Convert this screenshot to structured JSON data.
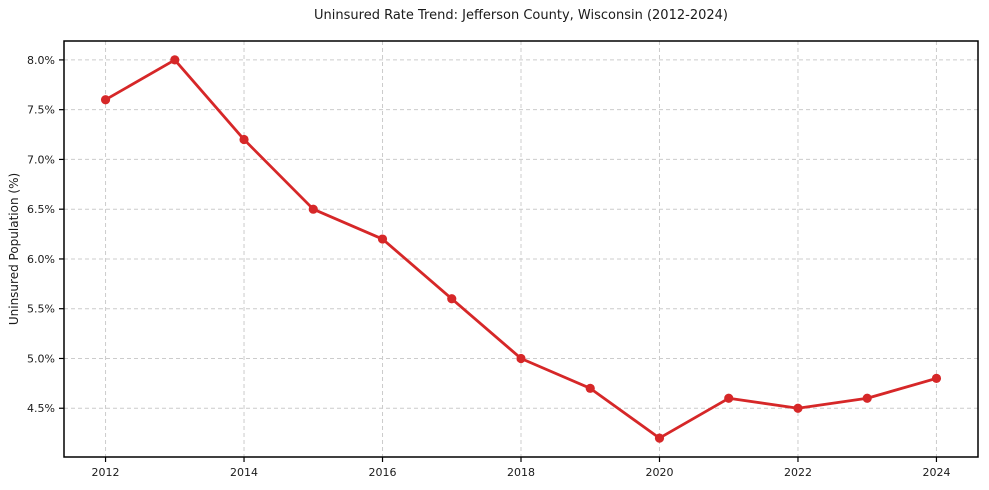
{
  "figure": {
    "background": "#ffffff"
  },
  "chart_data": {
    "type": "line",
    "title": "Uninsured Rate Trend: Jefferson County, Wisconsin (2012-2024)",
    "xlabel": "",
    "ylabel": "Uninsured Population (%)",
    "x": [
      2012,
      2013,
      2014,
      2015,
      2016,
      2017,
      2018,
      2019,
      2020,
      2021,
      2022,
      2023,
      2024
    ],
    "values": [
      7.6,
      8.0,
      7.2,
      6.5,
      6.2,
      5.6,
      5.0,
      4.7,
      4.2,
      4.6,
      4.5,
      4.6,
      4.8
    ],
    "xlim": [
      2011.4,
      2024.6
    ],
    "ylim": [
      4.01,
      8.19
    ],
    "xticks": [
      2012,
      2014,
      2016,
      2018,
      2020,
      2022,
      2024
    ],
    "yticks": [
      4.5,
      5.0,
      5.5,
      6.0,
      6.5,
      7.0,
      7.5,
      8.0
    ],
    "ytick_decimals": 1,
    "ytick_suffix": "%",
    "grid": true,
    "grid_style": "dashed",
    "legend_position": "none",
    "line_color": "#d62728",
    "marker_color": "#d62728",
    "marker_shape": "circle",
    "grid_color": "#cccccc",
    "axis_color": "#000000",
    "text_color": "#1a1a1a"
  }
}
